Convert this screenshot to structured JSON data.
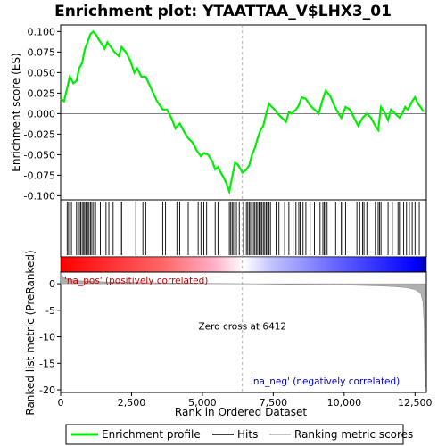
{
  "chart_data": {
    "type": "line",
    "title": "Enrichment plot: YTAATTAA_V$LHX3_01",
    "xlabel": "Rank in Ordered Dataset",
    "ylabel_top": "Enrichment score (ES)",
    "ylabel_bottom": "Ranked list metric (PreRanked)",
    "xlim": [
      0,
      12900
    ],
    "x_ticks": [
      0,
      2500,
      5000,
      7500,
      10000,
      12500
    ],
    "x_tick_labels": [
      "0",
      "2,500",
      "5,000",
      "7,500",
      "10,000",
      "12,500"
    ],
    "es_ylim": [
      -0.105,
      0.108
    ],
    "es_ticks": [
      -0.1,
      -0.075,
      -0.05,
      -0.025,
      0.0,
      0.025,
      0.05,
      0.075,
      0.1
    ],
    "es_tick_labels": [
      "-0.100",
      "-0.075",
      "-0.050",
      "-0.025",
      "0.000",
      "0.025",
      "0.050",
      "0.075",
      "0.100"
    ],
    "metric_ylim": [
      -20.5,
      2.2
    ],
    "metric_ticks": [
      0,
      -5,
      -10,
      -15,
      -20
    ],
    "metric_tick_labels": [
      "0",
      "-5",
      "-10",
      "-15",
      "-20"
    ],
    "es_curve": [
      [
        0,
        0.018
      ],
      [
        120,
        0.015
      ],
      [
        220,
        0.03
      ],
      [
        320,
        0.045
      ],
      [
        450,
        0.037
      ],
      [
        560,
        0.04
      ],
      [
        650,
        0.055
      ],
      [
        760,
        0.062
      ],
      [
        850,
        0.078
      ],
      [
        950,
        0.087
      ],
      [
        1050,
        0.097
      ],
      [
        1150,
        0.1
      ],
      [
        1250,
        0.096
      ],
      [
        1350,
        0.09
      ],
      [
        1450,
        0.085
      ],
      [
        1550,
        0.079
      ],
      [
        1650,
        0.087
      ],
      [
        1750,
        0.082
      ],
      [
        1900,
        0.075
      ],
      [
        2050,
        0.07
      ],
      [
        2150,
        0.081
      ],
      [
        2300,
        0.075
      ],
      [
        2450,
        0.065
      ],
      [
        2600,
        0.05
      ],
      [
        2700,
        0.055
      ],
      [
        2850,
        0.045
      ],
      [
        3000,
        0.045
      ],
      [
        3200,
        0.03
      ],
      [
        3400,
        0.015
      ],
      [
        3600,
        0.005
      ],
      [
        3750,
        0.005
      ],
      [
        3900,
        -0.005
      ],
      [
        4050,
        -0.018
      ],
      [
        4200,
        -0.012
      ],
      [
        4350,
        -0.022
      ],
      [
        4500,
        -0.03
      ],
      [
        4650,
        -0.035
      ],
      [
        4800,
        -0.045
      ],
      [
        4950,
        -0.052
      ],
      [
        5050,
        -0.048
      ],
      [
        5200,
        -0.05
      ],
      [
        5350,
        -0.058
      ],
      [
        5450,
        -0.068
      ],
      [
        5550,
        -0.065
      ],
      [
        5650,
        -0.072
      ],
      [
        5750,
        -0.078
      ],
      [
        5850,
        -0.085
      ],
      [
        5950,
        -0.095
      ],
      [
        6050,
        -0.077
      ],
      [
        6150,
        -0.06
      ],
      [
        6250,
        -0.062
      ],
      [
        6350,
        -0.068
      ],
      [
        6412,
        -0.072
      ],
      [
        6550,
        -0.068
      ],
      [
        6650,
        -0.063
      ],
      [
        6750,
        -0.05
      ],
      [
        6850,
        -0.042
      ],
      [
        6950,
        -0.03
      ],
      [
        7050,
        -0.02
      ],
      [
        7150,
        -0.015
      ],
      [
        7250,
        0.0
      ],
      [
        7350,
        0.012
      ],
      [
        7450,
        0.008
      ],
      [
        7550,
        0.005
      ],
      [
        7650,
        0.0
      ],
      [
        7800,
        -0.005
      ],
      [
        7950,
        -0.01
      ],
      [
        8050,
        0.002
      ],
      [
        8150,
        0.0
      ],
      [
        8300,
        0.005
      ],
      [
        8400,
        0.01
      ],
      [
        8500,
        0.02
      ],
      [
        8650,
        0.018
      ],
      [
        8800,
        0.01
      ],
      [
        8950,
        0.005
      ],
      [
        9100,
        0.0
      ],
      [
        9250,
        0.018
      ],
      [
        9350,
        0.028
      ],
      [
        9500,
        0.022
      ],
      [
        9650,
        0.01
      ],
      [
        9800,
        0.0
      ],
      [
        9900,
        -0.005
      ],
      [
        10050,
        0.008
      ],
      [
        10200,
        0.005
      ],
      [
        10350,
        -0.005
      ],
      [
        10500,
        -0.015
      ],
      [
        10650,
        -0.005
      ],
      [
        10800,
        0.0
      ],
      [
        10950,
        -0.005
      ],
      [
        11100,
        -0.015
      ],
      [
        11200,
        -0.02
      ],
      [
        11300,
        0.008
      ],
      [
        11450,
        0.0
      ],
      [
        11550,
        -0.008
      ],
      [
        11650,
        0.005
      ],
      [
        11800,
        0.0
      ],
      [
        11950,
        -0.005
      ],
      [
        12050,
        0.0
      ],
      [
        12150,
        0.008
      ],
      [
        12250,
        0.005
      ],
      [
        12400,
        0.015
      ],
      [
        12500,
        0.02
      ],
      [
        12600,
        0.012
      ],
      [
        12700,
        0.008
      ],
      [
        12800,
        0.002
      ]
    ],
    "hits": [
      230,
      280,
      330,
      380,
      560,
      610,
      660,
      710,
      760,
      810,
      850,
      900,
      950,
      1000,
      1050,
      1100,
      1160,
      1230,
      1400,
      1600,
      1700,
      1850,
      2100,
      2150,
      2650,
      2900,
      3000,
      3600,
      3700,
      4100,
      4200,
      4500,
      4850,
      4950,
      5050,
      5150,
      5450,
      5550,
      5950,
      6000,
      6050,
      6100,
      6150,
      6200,
      6300,
      6450,
      6550,
      6600,
      6650,
      6700,
      6750,
      6800,
      6850,
      6900,
      6950,
      7000,
      7050,
      7100,
      7150,
      7200,
      7250,
      7300,
      7350,
      7400,
      7600,
      7700,
      7900,
      8050,
      8200,
      8300,
      8400,
      8450,
      8550,
      8650,
      8800,
      8950,
      9150,
      9250,
      9300,
      9350,
      9400,
      9700,
      9900,
      9950,
      10050,
      10450,
      10550,
      10650,
      10700,
      10800,
      11100,
      11200,
      11250,
      11300,
      11550,
      11700,
      11900,
      11950,
      12000,
      12100,
      12200,
      12300,
      12400,
      12500,
      12650
    ],
    "metric_curve": [
      [
        0,
        2.0
      ],
      [
        100,
        1.2
      ],
      [
        300,
        0.8
      ],
      [
        700,
        0.55
      ],
      [
        1500,
        0.35
      ],
      [
        3000,
        0.2
      ],
      [
        5000,
        0.08
      ],
      [
        6412,
        0.0
      ],
      [
        8000,
        -0.1
      ],
      [
        9500,
        -0.2
      ],
      [
        10500,
        -0.3
      ],
      [
        11200,
        -0.4
      ],
      [
        11800,
        -0.55
      ],
      [
        12200,
        -0.75
      ],
      [
        12500,
        -1.1
      ],
      [
        12700,
        -1.8
      ],
      [
        12780,
        -3.5
      ],
      [
        12820,
        -8.0
      ],
      [
        12850,
        -19.5
      ],
      [
        12870,
        -19.5
      ]
    ],
    "zero_cross": 6412,
    "zero_cross_label": "Zero cross at 6412",
    "pos_label": "'na_pos' (positively correlated)",
    "neg_label": "'na_neg' (negatively correlated)",
    "legend": [
      "Enrichment profile",
      "Hits",
      "Ranking metric scores"
    ],
    "colors": {
      "es_line": "#00ee00",
      "hit": "#000000",
      "metric_fill": "#b0b0b0",
      "zero_line": "#999999",
      "pos_label": "#cc0000",
      "neg_label": "#0000cc",
      "bar_pos": "#ff0000",
      "bar_mid": "#ffffff",
      "bar_neg": "#0000ff"
    }
  }
}
